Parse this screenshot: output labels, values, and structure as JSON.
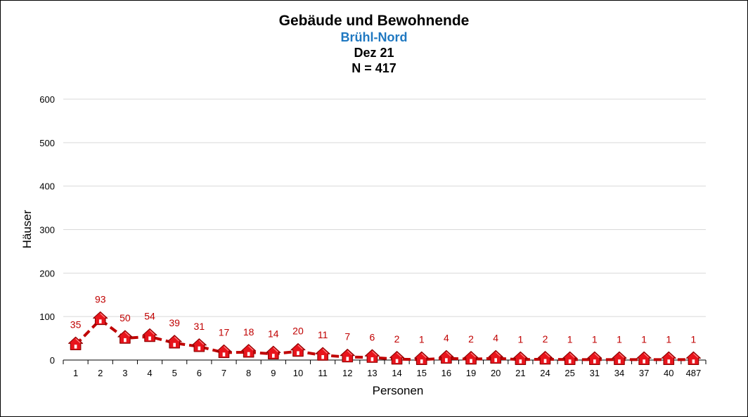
{
  "chart_data": {
    "type": "line",
    "title": "Gebäude und Bewohnende",
    "subtitle": "Brühl-Nord",
    "period": "Dez 21",
    "n_label": "N = 417",
    "xlabel": "Personen",
    "ylabel": "Häuser",
    "ylim": [
      0,
      600
    ],
    "yticks": [
      0,
      100,
      200,
      300,
      400,
      500,
      600
    ],
    "grid": true,
    "categories": [
      "1",
      "2",
      "3",
      "4",
      "5",
      "6",
      "7",
      "8",
      "9",
      "10",
      "11",
      "12",
      "13",
      "14",
      "15",
      "16",
      "19",
      "20",
      "21",
      "24",
      "25",
      "31",
      "34",
      "37",
      "40",
      "487"
    ],
    "values": [
      35,
      93,
      50,
      54,
      39,
      31,
      17,
      18,
      14,
      20,
      11,
      7,
      6,
      2,
      1,
      4,
      2,
      4,
      1,
      2,
      1,
      1,
      1,
      1,
      1,
      1
    ],
    "colors": {
      "line": "#c00000",
      "marker": "#e8141c",
      "label": "#c00000",
      "subtitle": "#1f78c1",
      "grid": "#d9d9d9"
    }
  }
}
